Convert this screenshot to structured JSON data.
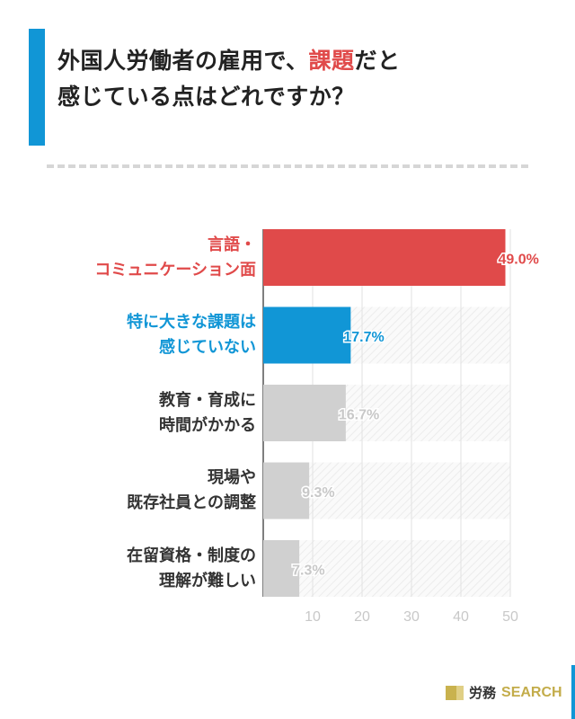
{
  "title": {
    "line1_a": "外国人労働者の雇用で、",
    "line1_highlight": "課題",
    "line1_b": "だと",
    "line2": "感じている点はどれですか？"
  },
  "colors": {
    "highlight": "#e04a4a",
    "blue": "#1196d6",
    "gray": "#d0d0d0"
  },
  "logo": {
    "jp": "労務",
    "en": "SEARCH"
  },
  "chart_data": {
    "type": "bar",
    "orientation": "horizontal",
    "categories": [
      [
        "言語・",
        "コミュニケーション面"
      ],
      [
        "特に大きな課題は",
        "感じていない"
      ],
      [
        "教育・育成に",
        "時間がかかる"
      ],
      [
        "現場や",
        "既存社員との調整"
      ],
      [
        "在留資格・制度の",
        "理解が難しい"
      ]
    ],
    "values": [
      49.0,
      17.7,
      16.7,
      9.3,
      7.3
    ],
    "data_labels": [
      "49.0%",
      "17.7%",
      "16.7%",
      "9.3%",
      "7.3%"
    ],
    "bar_colors": [
      "#e04a4a",
      "#1196d6",
      "#d0d0d0",
      "#d0d0d0",
      "#d0d0d0"
    ],
    "label_colors": [
      "#e04a4a",
      "#1196d6",
      "#333333",
      "#333333",
      "#333333"
    ],
    "xlim": [
      0,
      50
    ],
    "xticks": [
      "10",
      "20",
      "30",
      "40",
      "50"
    ],
    "grid": true
  }
}
